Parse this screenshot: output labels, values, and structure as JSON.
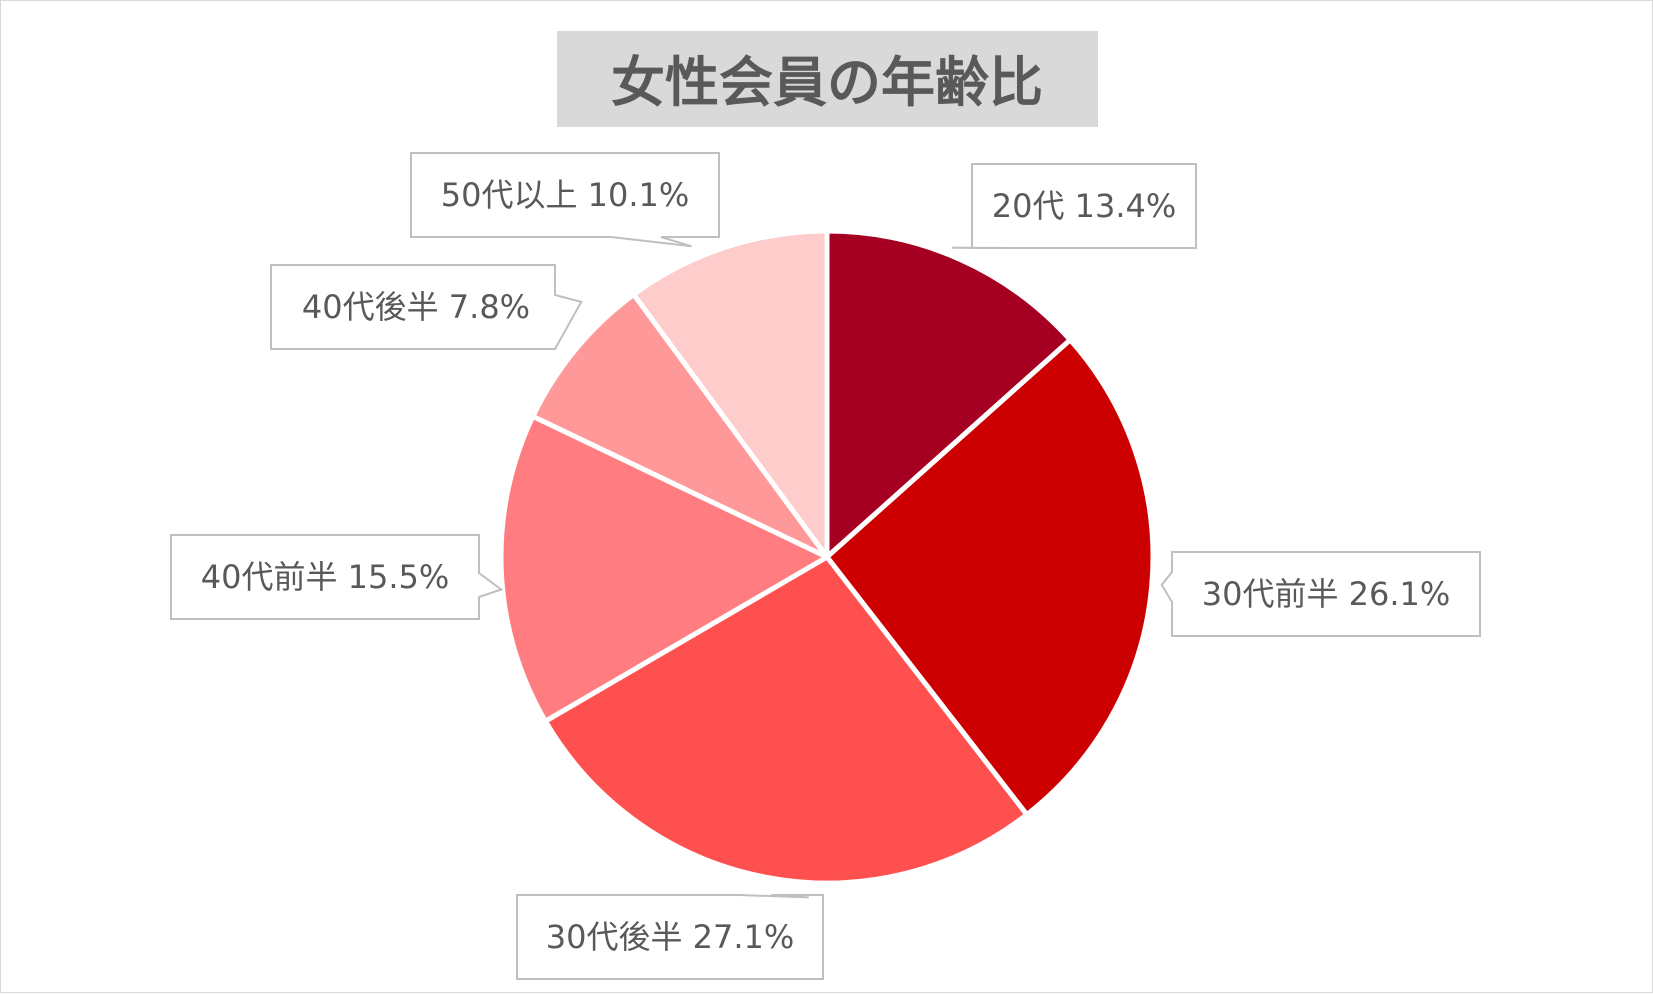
{
  "chart_data": {
    "type": "pie",
    "title": "女性会員の年齢比",
    "start_angle_deg": 0,
    "direction": "clockwise",
    "legend": "none",
    "slices": [
      {
        "label": "20代",
        "value": 13.4,
        "display": "20代 13.4%",
        "color": "#a50021"
      },
      {
        "label": "30代前半",
        "value": 26.1,
        "display": "30代前半 26.1%",
        "color": "#cc0000"
      },
      {
        "label": "30代後半",
        "value": 27.1,
        "display": "30代後半 27.1%",
        "color": "#ff5050"
      },
      {
        "label": "40代前半",
        "value": 15.5,
        "display": "40代前半 15.5%",
        "color": "#ff7c80"
      },
      {
        "label": "40代後半",
        "value": 7.8,
        "display": "40代後半 7.8%",
        "color": "#ff9999"
      },
      {
        "label": "50代以上",
        "value": 10.1,
        "display": "50代以上 10.1%",
        "color": "#ffcccc"
      }
    ]
  },
  "colors": {
    "title_background": "#d9d9d9",
    "title_text": "#595959",
    "label_text": "#595959",
    "callout_border": "#bfbfbf",
    "slice_separator": "#ffffff"
  }
}
